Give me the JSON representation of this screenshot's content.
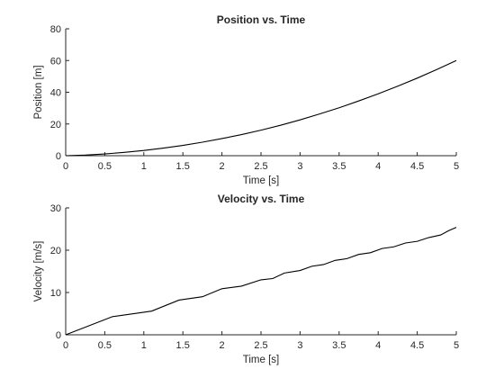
{
  "chart_data": [
    {
      "type": "line",
      "title": "Position vs. Time",
      "xlabel": "Time [s]",
      "ylabel": "Position [m]",
      "xlim": [
        0,
        5
      ],
      "ylim": [
        0,
        80
      ],
      "xticks": [
        0,
        0.5,
        1,
        1.5,
        2,
        2.5,
        3,
        3.5,
        4,
        4.5,
        5
      ],
      "xtick_labels": [
        "0",
        "0.5",
        "1",
        "1.5",
        "2",
        "2.5",
        "3",
        "3.5",
        "4",
        "4.5",
        "5"
      ],
      "yticks": [
        0,
        20,
        40,
        60,
        80
      ],
      "ytick_labels": [
        "0",
        "20",
        "40",
        "60",
        "80"
      ],
      "grid": false,
      "series": [
        {
          "x": [
            0,
            0.25,
            0.5,
            0.75,
            1,
            1.25,
            1.5,
            1.75,
            2,
            2.25,
            2.5,
            2.75,
            3,
            3.25,
            3.5,
            3.75,
            4,
            4.25,
            4.5,
            4.75,
            5
          ],
          "y": [
            0,
            0.4,
            1.1,
            2.1,
            3.3,
            4.8,
            6.5,
            8.5,
            10.8,
            13.3,
            16.1,
            19.2,
            22.6,
            26.3,
            30.2,
            34.5,
            39.0,
            43.8,
            48.9,
            54.3,
            60.0
          ],
          "color": "#000000"
        }
      ]
    },
    {
      "type": "line",
      "title": "Velocity vs. Time",
      "xlabel": "Time [s]",
      "ylabel": "Velocity [m/s]",
      "xlim": [
        0,
        5
      ],
      "ylim": [
        0,
        30
      ],
      "xticks": [
        0,
        0.5,
        1,
        1.5,
        2,
        2.5,
        3,
        3.5,
        4,
        4.5,
        5
      ],
      "xtick_labels": [
        "0",
        "0.5",
        "1",
        "1.5",
        "2",
        "2.5",
        "3",
        "3.5",
        "4",
        "4.5",
        "5"
      ],
      "yticks": [
        0,
        10,
        20,
        30
      ],
      "ytick_labels": [
        "0",
        "10",
        "20",
        "30"
      ],
      "grid": false,
      "series": [
        {
          "x": [
            0,
            0.6,
            1.1,
            1.45,
            1.75,
            2.0,
            2.25,
            2.5,
            2.65,
            2.8,
            3.0,
            3.15,
            3.3,
            3.45,
            3.6,
            3.75,
            3.9,
            4.05,
            4.2,
            4.35,
            4.5,
            4.65,
            4.8,
            4.9,
            5.0
          ],
          "y": [
            0,
            4.3,
            5.6,
            8.2,
            9.0,
            10.9,
            11.5,
            13.0,
            13.3,
            14.6,
            15.2,
            16.2,
            16.6,
            17.6,
            18.0,
            19.0,
            19.4,
            20.4,
            20.8,
            21.7,
            22.1,
            23.0,
            23.6,
            24.6,
            25.4
          ],
          "color": "#000000"
        }
      ]
    }
  ]
}
